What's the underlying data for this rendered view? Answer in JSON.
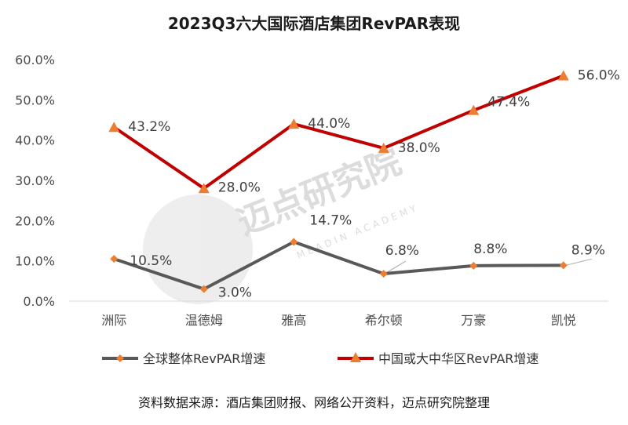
{
  "title": "2023Q3六大国际酒店集团RevPAR表现",
  "source": "资料数据来源：酒店集团财报、网络公开资料，迈点研究院整理",
  "watermark": {
    "name": "迈点研究院",
    "sub": "MEADIN ACADEMY"
  },
  "colors": {
    "series1": "#595959",
    "series1_marker": "#ED7D31",
    "series2": "#C00000",
    "series2_marker": "#ED7D31",
    "axis": "#d9d9d9"
  },
  "chart_data": {
    "type": "line",
    "categories": [
      "洲际",
      "温德姆",
      "雅高",
      "希尔顿",
      "万豪",
      "凯悦"
    ],
    "ylim": [
      0,
      60
    ],
    "yticks": [
      0,
      10,
      20,
      30,
      40,
      50,
      60
    ],
    "ytick_labels": [
      "0.0%",
      "10.0%",
      "20.0%",
      "30.0%",
      "40.0%",
      "50.0%",
      "60.0%"
    ],
    "grid": false,
    "legend": "bottom",
    "series": [
      {
        "name": "全球整体RevPAR增速",
        "marker": "diamond",
        "values": [
          10.5,
          3.0,
          14.7,
          6.8,
          8.8,
          8.9
        ],
        "labels": [
          "10.5%",
          "3.0%",
          "14.7%",
          "6.8%",
          "8.8%",
          "8.9%"
        ]
      },
      {
        "name": "中国或大中华区RevPAR增速",
        "marker": "triangle",
        "values": [
          43.2,
          28.0,
          44.0,
          38.0,
          47.4,
          56.0
        ],
        "labels": [
          "43.2%",
          "28.0%",
          "44.0%",
          "38.0%",
          "47.4%",
          "56.0%"
        ]
      }
    ]
  }
}
